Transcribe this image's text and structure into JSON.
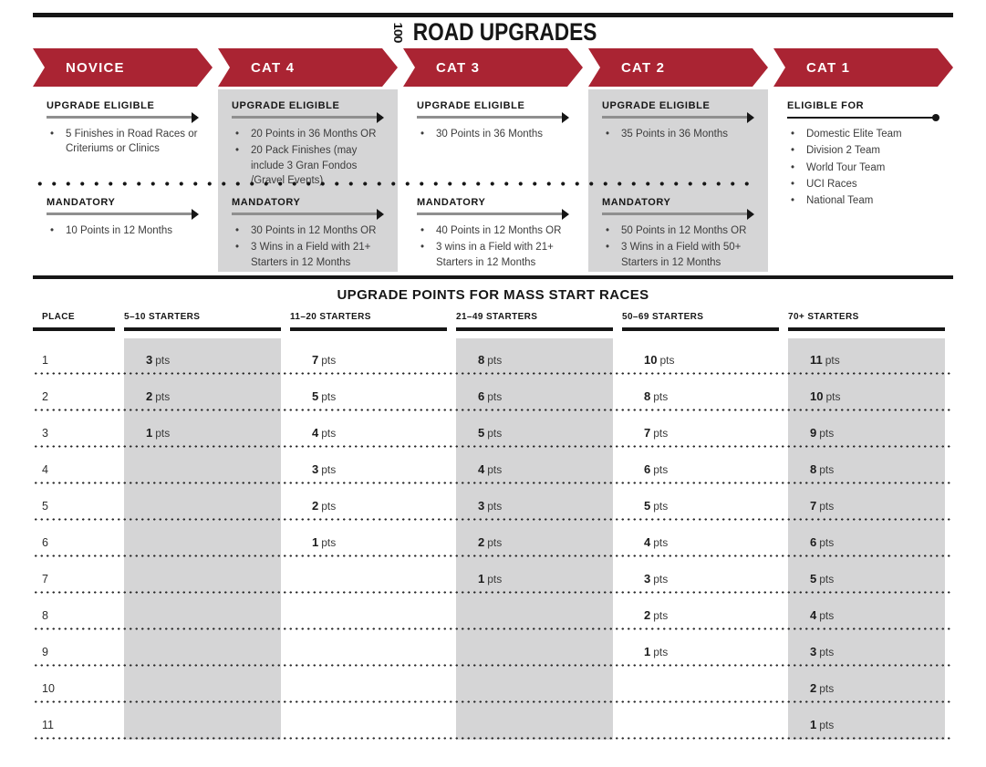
{
  "masthead": {
    "logo_text": "100",
    "title": "ROAD UPGRADES"
  },
  "colors": {
    "banner_red": "#AA2433",
    "shade_gray": "#D5D5D6",
    "ink": "#161616"
  },
  "columns": [
    {
      "banner": "NOVICE",
      "eligible": {
        "label": "UPGRADE ELIGIBLE",
        "items": [
          "5 Finishes in Road Races or Criteriums or Clinics"
        ]
      },
      "mandatory": {
        "label": "MANDATORY",
        "items": [
          "10 Points in 12 Months"
        ]
      }
    },
    {
      "banner": "CAT 4",
      "eligible": {
        "label": "UPGRADE ELIGIBLE",
        "items": [
          "20 Points in 36 Months OR",
          "20 Pack Finishes (may include 3 Gran Fondos /Gravel Events)"
        ]
      },
      "mandatory": {
        "label": "MANDATORY",
        "items": [
          "30 Points in 12 Months OR",
          "3 Wins in a Field with 21+ Starters in 12 Months"
        ]
      }
    },
    {
      "banner": "CAT 3",
      "eligible": {
        "label": "UPGRADE ELIGIBLE",
        "items": [
          "30 Points in 36 Months"
        ]
      },
      "mandatory": {
        "label": "MANDATORY",
        "items": [
          "40 Points in 12 Months OR",
          "3 wins in a Field with 21+ Starters in 12 Months"
        ]
      }
    },
    {
      "banner": "CAT 2",
      "eligible": {
        "label": "UPGRADE ELIGIBLE",
        "items": [
          "35 Points in 36 Months"
        ]
      },
      "mandatory": {
        "label": "MANDATORY",
        "items": [
          "50 Points in 12 Months OR",
          "3 Wins in a Field with 50+ Starters in 12 Months"
        ]
      }
    },
    {
      "banner": "CAT 1",
      "eligible": {
        "label": "ELIGIBLE FOR",
        "items": [
          "Domestic Elite Team",
          "Division 2 Team",
          "World Tour Team",
          "UCI Races",
          "National Team"
        ]
      }
    }
  ],
  "points_table": {
    "title": "UPGRADE POINTS FOR MASS START RACES",
    "unit": "pts",
    "headers": [
      "PLACE",
      "5–10 STARTERS",
      "11–20 STARTERS",
      "21–49 STARTERS",
      "50–69 STARTERS",
      "70+ STARTERS"
    ],
    "rows": [
      {
        "place": "1",
        "values": [
          "3",
          "7",
          "8",
          "10",
          "11"
        ]
      },
      {
        "place": "2",
        "values": [
          "2",
          "5",
          "6",
          "8",
          "10"
        ]
      },
      {
        "place": "3",
        "values": [
          "1",
          "4",
          "5",
          "7",
          "9"
        ]
      },
      {
        "place": "4",
        "values": [
          "",
          "3",
          "4",
          "6",
          "8"
        ]
      },
      {
        "place": "5",
        "values": [
          "",
          "2",
          "3",
          "5",
          "7"
        ]
      },
      {
        "place": "6",
        "values": [
          "",
          "1",
          "2",
          "4",
          "6"
        ]
      },
      {
        "place": "7",
        "values": [
          "",
          "",
          "1",
          "3",
          "5"
        ]
      },
      {
        "place": "8",
        "values": [
          "",
          "",
          "",
          "2",
          "4"
        ]
      },
      {
        "place": "9",
        "values": [
          "",
          "",
          "",
          "1",
          "3"
        ]
      },
      {
        "place": "10",
        "values": [
          "",
          "",
          "",
          "",
          "2"
        ]
      },
      {
        "place": "11",
        "values": [
          "",
          "",
          "",
          "",
          "1"
        ]
      }
    ]
  }
}
